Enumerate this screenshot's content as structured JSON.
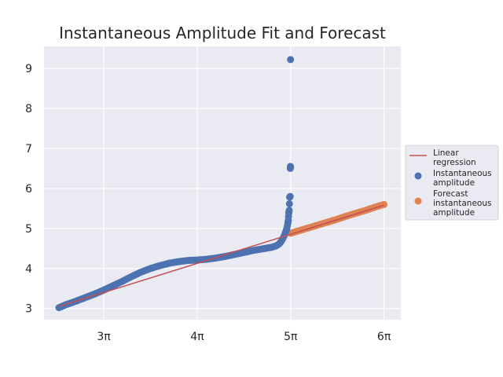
{
  "chart_data": {
    "type": "scatter",
    "title": "Instantaneous Amplitude Fit and Forecast",
    "xlabel": "",
    "ylabel": "",
    "xlim_pi": [
      2.36,
      6.18
    ],
    "ylim": [
      2.72,
      9.55
    ],
    "grid": true,
    "background": "#eaeaf2",
    "legend_position": "right",
    "x_ticks": [
      {
        "value_pi": 3,
        "label": "3π"
      },
      {
        "value_pi": 4,
        "label": "4π"
      },
      {
        "value_pi": 5,
        "label": "5π"
      },
      {
        "value_pi": 6,
        "label": "6π"
      }
    ],
    "y_ticks": [
      {
        "value": 3,
        "label": "3"
      },
      {
        "value": 4,
        "label": "4"
      },
      {
        "value": 5,
        "label": "5"
      },
      {
        "value": 6,
        "label": "6"
      },
      {
        "value": 7,
        "label": "7"
      },
      {
        "value": 8,
        "label": "8"
      },
      {
        "value": 9,
        "label": "9"
      }
    ],
    "series": [
      {
        "name": "Linear regression",
        "kind": "line",
        "color": "#c44e52",
        "x_pi": [
          2.52,
          6.0
        ],
        "y": [
          3.05,
          5.58
        ]
      },
      {
        "name": "Instantaneous amplitude",
        "kind": "scatter",
        "color": "#4c72b0",
        "x_pi": [
          2.52,
          2.6,
          2.7,
          2.8,
          2.9,
          3.0,
          3.1,
          3.2,
          3.3,
          3.4,
          3.5,
          3.6,
          3.7,
          3.8,
          3.9,
          4.0,
          4.1,
          4.2,
          4.3,
          4.4,
          4.5,
          4.6,
          4.7,
          4.75,
          4.8,
          4.85,
          4.88,
          4.9,
          4.92,
          4.94,
          4.95,
          4.96,
          4.97,
          4.975,
          4.98,
          4.985,
          4.99,
          4.995,
          4.997,
          4.998,
          4.999
        ],
        "y": [
          3.02,
          3.1,
          3.18,
          3.27,
          3.36,
          3.46,
          3.57,
          3.68,
          3.8,
          3.91,
          4.0,
          4.07,
          4.13,
          4.17,
          4.2,
          4.21,
          4.23,
          4.26,
          4.3,
          4.35,
          4.4,
          4.45,
          4.49,
          4.51,
          4.53,
          4.57,
          4.62,
          4.68,
          4.76,
          4.86,
          4.93,
          5.0,
          5.12,
          5.2,
          5.38,
          5.45,
          5.78,
          5.8,
          6.5,
          6.55,
          9.22
        ]
      },
      {
        "name": "Forecast instantaneous amplitude",
        "kind": "scatter",
        "color": "#dd8452",
        "x_pi": [
          5.0,
          5.1,
          5.2,
          5.3,
          5.4,
          5.5,
          5.6,
          5.7,
          5.8,
          5.9,
          6.0
        ],
        "y": [
          4.88,
          4.95,
          5.02,
          5.09,
          5.16,
          5.23,
          5.31,
          5.38,
          5.45,
          5.53,
          5.6
        ]
      }
    ],
    "legend": [
      {
        "label_lines": [
          "Linear",
          "regression"
        ]
      },
      {
        "label_lines": [
          "Instantaneous",
          "amplitude"
        ]
      },
      {
        "label_lines": [
          "Forecast",
          "instantaneous",
          "amplitude"
        ]
      }
    ]
  }
}
